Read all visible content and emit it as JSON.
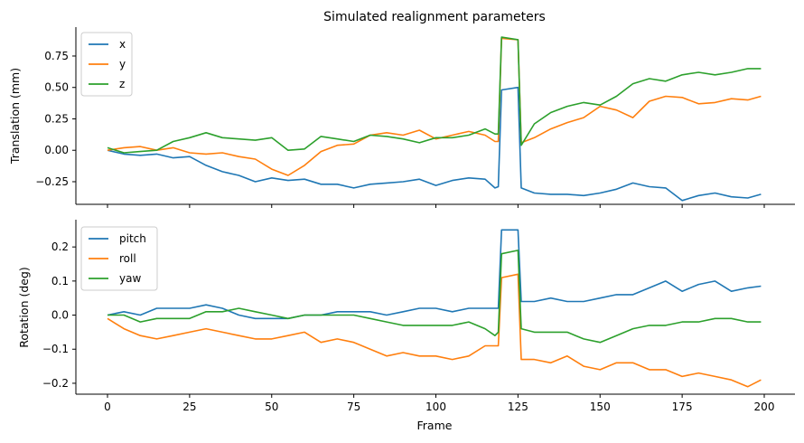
{
  "chart_data": {
    "type": "line",
    "title": "Simulated realignment parameters",
    "xlabel": "Frame",
    "grid": false,
    "legend_position": "top-left",
    "x_range": [
      0,
      200
    ],
    "x_ticks": [
      0,
      25,
      50,
      75,
      100,
      125,
      150,
      175,
      200
    ],
    "x_tick_labels": [
      "0",
      "25",
      "50",
      "75",
      "100",
      "125",
      "150",
      "175",
      "200"
    ],
    "colors": {
      "blue": "#1f77b4",
      "orange": "#ff7f0e",
      "green": "#2ca02c"
    },
    "panels": [
      {
        "ylabel": "Translation (mm)",
        "ylim": [
          -0.43,
          0.98
        ],
        "y_ticks": [
          -0.25,
          0,
          0.25,
          0.5,
          0.75
        ],
        "y_tick_labels": [
          "−0.25",
          "0.00",
          "0.25",
          "0.50",
          "0.75"
        ],
        "x": [
          0,
          5,
          10,
          15,
          20,
          25,
          30,
          35,
          40,
          45,
          50,
          55,
          60,
          65,
          70,
          75,
          80,
          85,
          90,
          95,
          100,
          105,
          110,
          115,
          118,
          119,
          120,
          125,
          126,
          130,
          135,
          140,
          145,
          150,
          155,
          160,
          165,
          170,
          175,
          180,
          185,
          190,
          195,
          199
        ],
        "series": [
          {
            "name": "x",
            "color": "#1f77b4",
            "values": [
              0.0,
              -0.03,
              -0.04,
              -0.03,
              -0.06,
              -0.05,
              -0.12,
              -0.17,
              -0.2,
              -0.25,
              -0.22,
              -0.24,
              -0.23,
              -0.27,
              -0.27,
              -0.3,
              -0.27,
              -0.26,
              -0.25,
              -0.23,
              -0.28,
              -0.24,
              -0.22,
              -0.23,
              -0.3,
              -0.29,
              0.48,
              0.5,
              -0.3,
              -0.34,
              -0.35,
              -0.35,
              -0.36,
              -0.34,
              -0.31,
              -0.26,
              -0.29,
              -0.3,
              -0.4,
              -0.36,
              -0.34,
              -0.37,
              -0.38,
              -0.35
            ]
          },
          {
            "name": "y",
            "color": "#ff7f0e",
            "values": [
              0.0,
              0.02,
              0.03,
              0.0,
              0.02,
              -0.02,
              -0.03,
              -0.02,
              -0.05,
              -0.07,
              -0.15,
              -0.2,
              -0.12,
              -0.01,
              0.04,
              0.05,
              0.12,
              0.14,
              0.12,
              0.16,
              0.09,
              0.12,
              0.15,
              0.12,
              0.07,
              0.07,
              0.89,
              0.88,
              0.06,
              0.1,
              0.17,
              0.22,
              0.26,
              0.35,
              0.32,
              0.26,
              0.39,
              0.43,
              0.42,
              0.37,
              0.38,
              0.41,
              0.4,
              0.43
            ]
          },
          {
            "name": "z",
            "color": "#2ca02c",
            "values": [
              0.02,
              -0.02,
              -0.01,
              0.0,
              0.07,
              0.1,
              0.14,
              0.1,
              0.09,
              0.08,
              0.1,
              0.0,
              0.01,
              0.11,
              0.09,
              0.07,
              0.12,
              0.11,
              0.09,
              0.06,
              0.1,
              0.1,
              0.12,
              0.17,
              0.13,
              0.13,
              0.9,
              0.88,
              0.04,
              0.21,
              0.3,
              0.35,
              0.38,
              0.36,
              0.43,
              0.53,
              0.57,
              0.55,
              0.6,
              0.62,
              0.6,
              0.62,
              0.65,
              0.65
            ]
          }
        ]
      },
      {
        "ylabel": "Rotation (deg)",
        "ylim": [
          -0.232,
          0.28
        ],
        "y_ticks": [
          -0.2,
          -0.1,
          0.0,
          0.1,
          0.2
        ],
        "y_tick_labels": [
          "−0.2",
          "−0.1",
          "0.0",
          "0.1",
          "0.2"
        ],
        "x": [
          0,
          5,
          10,
          15,
          20,
          25,
          30,
          35,
          40,
          45,
          50,
          55,
          60,
          65,
          70,
          75,
          80,
          85,
          90,
          95,
          100,
          105,
          110,
          115,
          118,
          119,
          120,
          125,
          126,
          130,
          135,
          140,
          145,
          150,
          155,
          160,
          165,
          170,
          175,
          180,
          185,
          190,
          195,
          199
        ],
        "series": [
          {
            "name": "pitch",
            "color": "#1f77b4",
            "values": [
              0.0,
              0.01,
              0.0,
              0.02,
              0.02,
              0.02,
              0.03,
              0.02,
              0.0,
              -0.01,
              -0.01,
              -0.01,
              0.0,
              0.0,
              0.01,
              0.01,
              0.01,
              0.0,
              0.01,
              0.02,
              0.02,
              0.01,
              0.02,
              0.02,
              0.02,
              0.02,
              0.25,
              0.25,
              0.04,
              0.04,
              0.05,
              0.04,
              0.04,
              0.05,
              0.06,
              0.06,
              0.08,
              0.1,
              0.07,
              0.09,
              0.1,
              0.07,
              0.08,
              0.085
            ]
          },
          {
            "name": "roll",
            "color": "#ff7f0e",
            "values": [
              -0.01,
              -0.04,
              -0.06,
              -0.07,
              -0.06,
              -0.05,
              -0.04,
              -0.05,
              -0.06,
              -0.07,
              -0.07,
              -0.06,
              -0.05,
              -0.08,
              -0.07,
              -0.08,
              -0.1,
              -0.12,
              -0.11,
              -0.12,
              -0.12,
              -0.13,
              -0.12,
              -0.09,
              -0.09,
              -0.09,
              0.11,
              0.12,
              -0.13,
              -0.13,
              -0.14,
              -0.12,
              -0.15,
              -0.16,
              -0.14,
              -0.14,
              -0.16,
              -0.16,
              -0.18,
              -0.17,
              -0.18,
              -0.19,
              -0.21,
              -0.19
            ]
          },
          {
            "name": "yaw",
            "color": "#2ca02c",
            "values": [
              0.0,
              0.0,
              -0.02,
              -0.01,
              -0.01,
              -0.01,
              0.01,
              0.01,
              0.02,
              0.01,
              0.0,
              -0.01,
              0.0,
              0.0,
              0.0,
              0.0,
              -0.01,
              -0.02,
              -0.03,
              -0.03,
              -0.03,
              -0.03,
              -0.02,
              -0.04,
              -0.06,
              -0.05,
              0.18,
              0.19,
              -0.04,
              -0.05,
              -0.05,
              -0.05,
              -0.07,
              -0.08,
              -0.06,
              -0.04,
              -0.03,
              -0.03,
              -0.02,
              -0.02,
              -0.01,
              -0.01,
              -0.02,
              -0.02
            ]
          }
        ]
      }
    ]
  }
}
